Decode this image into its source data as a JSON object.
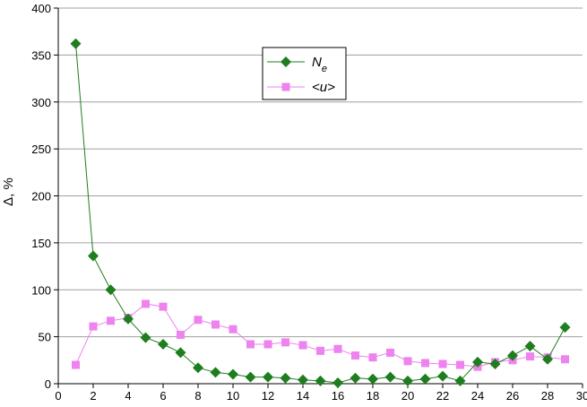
{
  "chart_data": {
    "type": "line",
    "title": "",
    "xlabel": "",
    "ylabel": "Δ, %",
    "xlim": [
      0,
      30
    ],
    "ylim": [
      0,
      400
    ],
    "xticks": [
      "0",
      "2",
      "4",
      "6",
      "8",
      "10",
      "12",
      "14",
      "16",
      "18",
      "20",
      "22",
      "24",
      "26",
      "28",
      "30"
    ],
    "yticks": [
      "0",
      "50",
      "100",
      "150",
      "200",
      "250",
      "300",
      "350",
      "400"
    ],
    "grid": "horizontal",
    "legend_position": "top-center",
    "series": [
      {
        "name": "N",
        "name_subscript": "e",
        "color": "#1e7d1e",
        "marker": "diamond",
        "x": [
          1,
          2,
          3,
          4,
          5,
          6,
          7,
          8,
          9,
          10,
          11,
          12,
          13,
          14,
          15,
          16,
          17,
          18,
          19,
          20,
          21,
          22,
          23,
          24,
          25,
          26,
          27,
          28,
          29
        ],
        "y": [
          362,
          136,
          100,
          69,
          49,
          42,
          33,
          17,
          12,
          10,
          7,
          7,
          6,
          4,
          3,
          1,
          6,
          5,
          7,
          3,
          5,
          8,
          3,
          23,
          21,
          30,
          40,
          26,
          60
        ]
      },
      {
        "name": "<u>",
        "color": "#ee82ee",
        "marker": "square",
        "x": [
          1,
          2,
          3,
          4,
          5,
          6,
          7,
          8,
          9,
          10,
          11,
          12,
          13,
          14,
          15,
          16,
          17,
          18,
          19,
          20,
          21,
          22,
          23,
          24,
          25,
          26,
          27,
          28,
          29
        ],
        "y": [
          20,
          61,
          67,
          70,
          85,
          82,
          52,
          68,
          63,
          58,
          42,
          42,
          44,
          41,
          35,
          37,
          30,
          28,
          33,
          24,
          22,
          21,
          20,
          18,
          23,
          25,
          29,
          28,
          26
        ]
      }
    ]
  }
}
